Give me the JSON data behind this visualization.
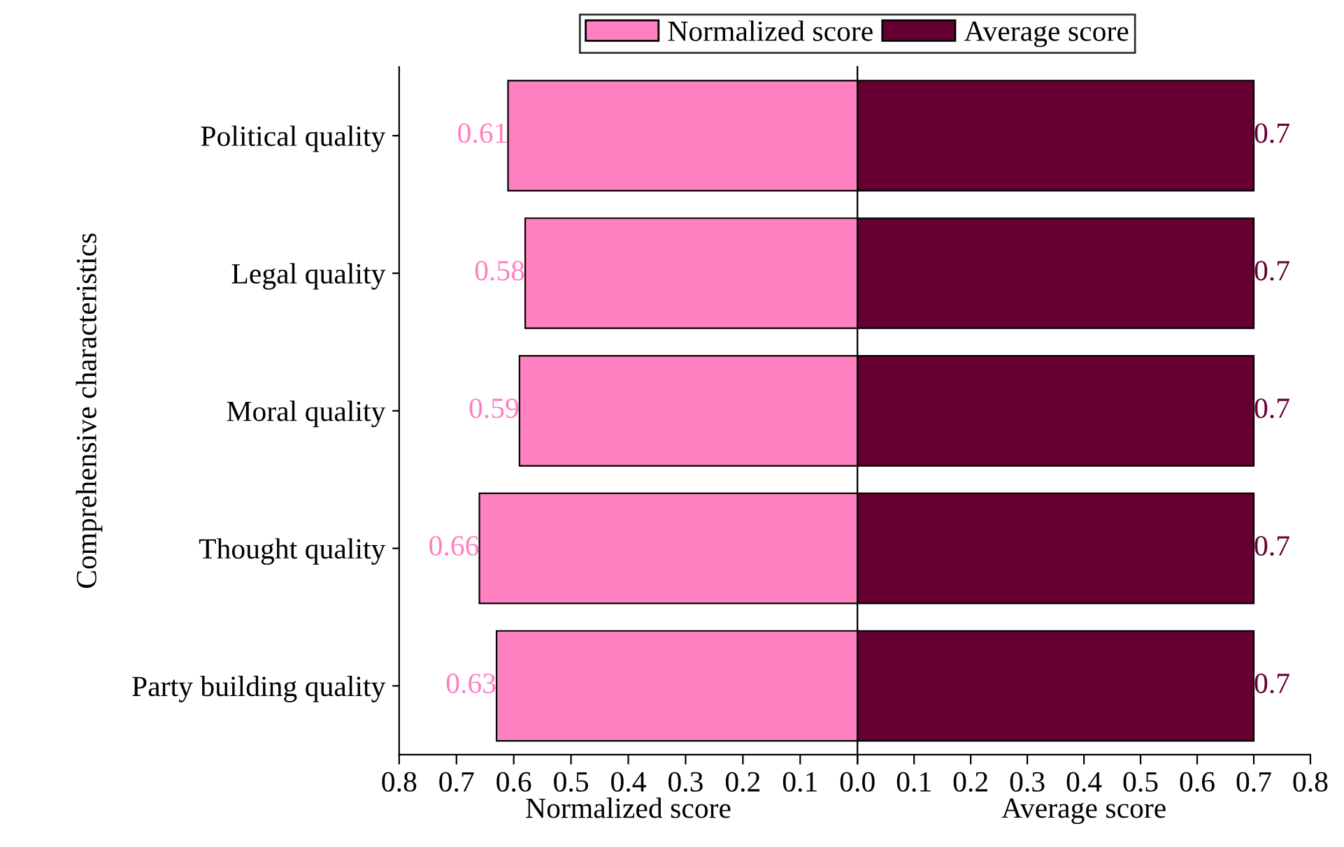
{
  "chart_data": [
    {
      "type": "bar",
      "orientation": "horizontal",
      "categories": [
        "Political quality",
        "Legal quality",
        "Moral quality",
        "Thought quality",
        "Party building quality"
      ],
      "ylabel": "Comprehensive characteristics",
      "xlabel": "Normalized score",
      "series": [
        {
          "name": "Normalized score",
          "color": "#ff80c0",
          "values": [
            0.61,
            0.58,
            0.59,
            0.66,
            0.63
          ]
        }
      ],
      "xlim": [
        0.8,
        0
      ],
      "xticks": [
        0.8,
        0.7,
        0.6,
        0.5,
        0.4,
        0.3,
        0.2,
        0.1,
        {
          "value": 0,
          "label": null
        }
      ],
      "data_labels": true,
      "legend": "top",
      "grid": false
    },
    {
      "type": "bar",
      "orientation": "horizontal",
      "categories": [
        null,
        null,
        null,
        null,
        null
      ],
      "xlabel": "Average score",
      "series": [
        {
          "name": "Average score",
          "color": "#660033",
          "values": [
            0.7,
            0.7,
            0.7,
            0.7,
            0.7
          ]
        }
      ],
      "xlim": [
        0,
        0.8
      ],
      "xticks": [
        {
          "value": 0,
          "label": "0.0"
        },
        0.1,
        0.2,
        0.3,
        0.4,
        0.5,
        0.6,
        0.7,
        0.8
      ],
      "data_labels": true,
      "tick_labels": "x",
      "legend": "top",
      "grid": false
    }
  ]
}
